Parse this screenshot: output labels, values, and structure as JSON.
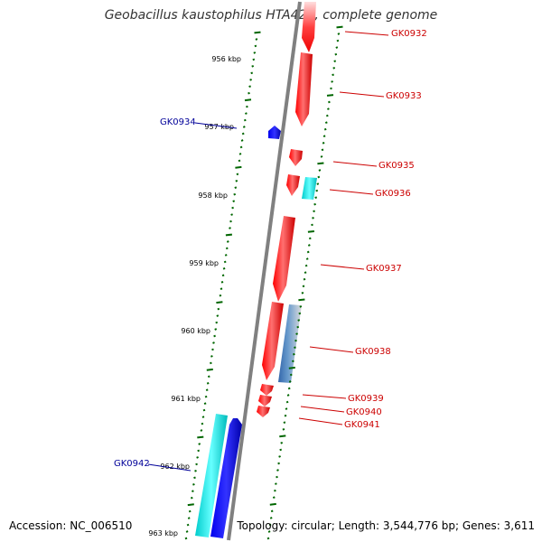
{
  "title": "Geobacillus kaustophilus HTA426, complete genome",
  "footer": {
    "accession": "Accession: NC_006510",
    "stats": "Topology: circular; Length: 3,544,776 bp; Genes: 3,611"
  },
  "colors": {
    "forward_gene": "#ff0000",
    "reverse_gene": "#0000ff",
    "forward_label": "#cc0000",
    "reverse_label": "#000099",
    "rna_feature": "#00dddd",
    "other_feature": "#336699",
    "ticks": "#006600",
    "backbone": "#808080"
  },
  "scale_labels": [
    "956 kbp",
    "957 kbp",
    "958 kbp",
    "959 kbp",
    "960 kbp",
    "961 kbp",
    "962 kbp",
    "963 kbp"
  ],
  "gene_labels": {
    "GK0932": "GK0932",
    "GK0933": "GK0933",
    "GK0934": "GK0934",
    "GK0935": "GK0935",
    "GK0936": "GK0936",
    "GK0937": "GK0937",
    "GK0938": "GK0938",
    "GK0939": "GK0939",
    "GK0940": "GK0940",
    "GK0941": "GK0941",
    "GK0942": "GK0942"
  }
}
